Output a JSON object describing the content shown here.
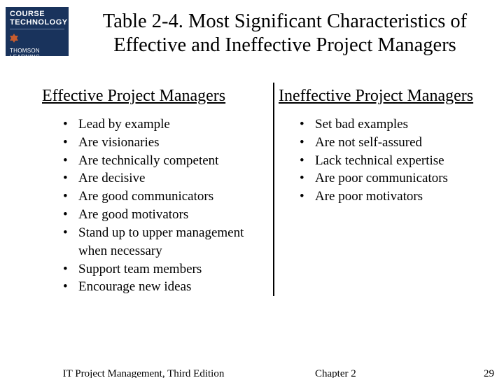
{
  "logo": {
    "course_label": "COURSE",
    "tech_label": "TECHNOLOGY",
    "vendor_label": "THOMSON LEARNING",
    "bg_color": "#19335c",
    "text_color": "#ffffff",
    "accent_color": "#c75c2e"
  },
  "title": {
    "text": "Table 2-4. Most Significant Characteristics of Effective and Ineffective Project Managers",
    "fontsize": 28.5,
    "color": "#000000"
  },
  "columns": {
    "divider_color": "#000000",
    "divider_width": 2.5,
    "header_fontsize": 24,
    "item_fontsize": 19,
    "left": {
      "header": "Effective Project Managers",
      "items": [
        "Lead by example",
        "Are visionaries",
        "Are technically competent",
        "Are decisive",
        "Are good communicators",
        "Are good motivators",
        "Stand up to upper management when necessary",
        "Support team members",
        "Encourage new ideas"
      ]
    },
    "right": {
      "header": "Ineffective Project Managers",
      "items": [
        "Set bad examples",
        "Are not self-assured",
        "Lack technical expertise",
        "Are poor communicators",
        "Are poor motivators"
      ]
    }
  },
  "footer": {
    "book": "IT Project Management, Third Edition",
    "chapter": "Chapter 2",
    "page": "29",
    "fontsize": 15,
    "color": "#000000"
  },
  "background_color": "#ffffff"
}
